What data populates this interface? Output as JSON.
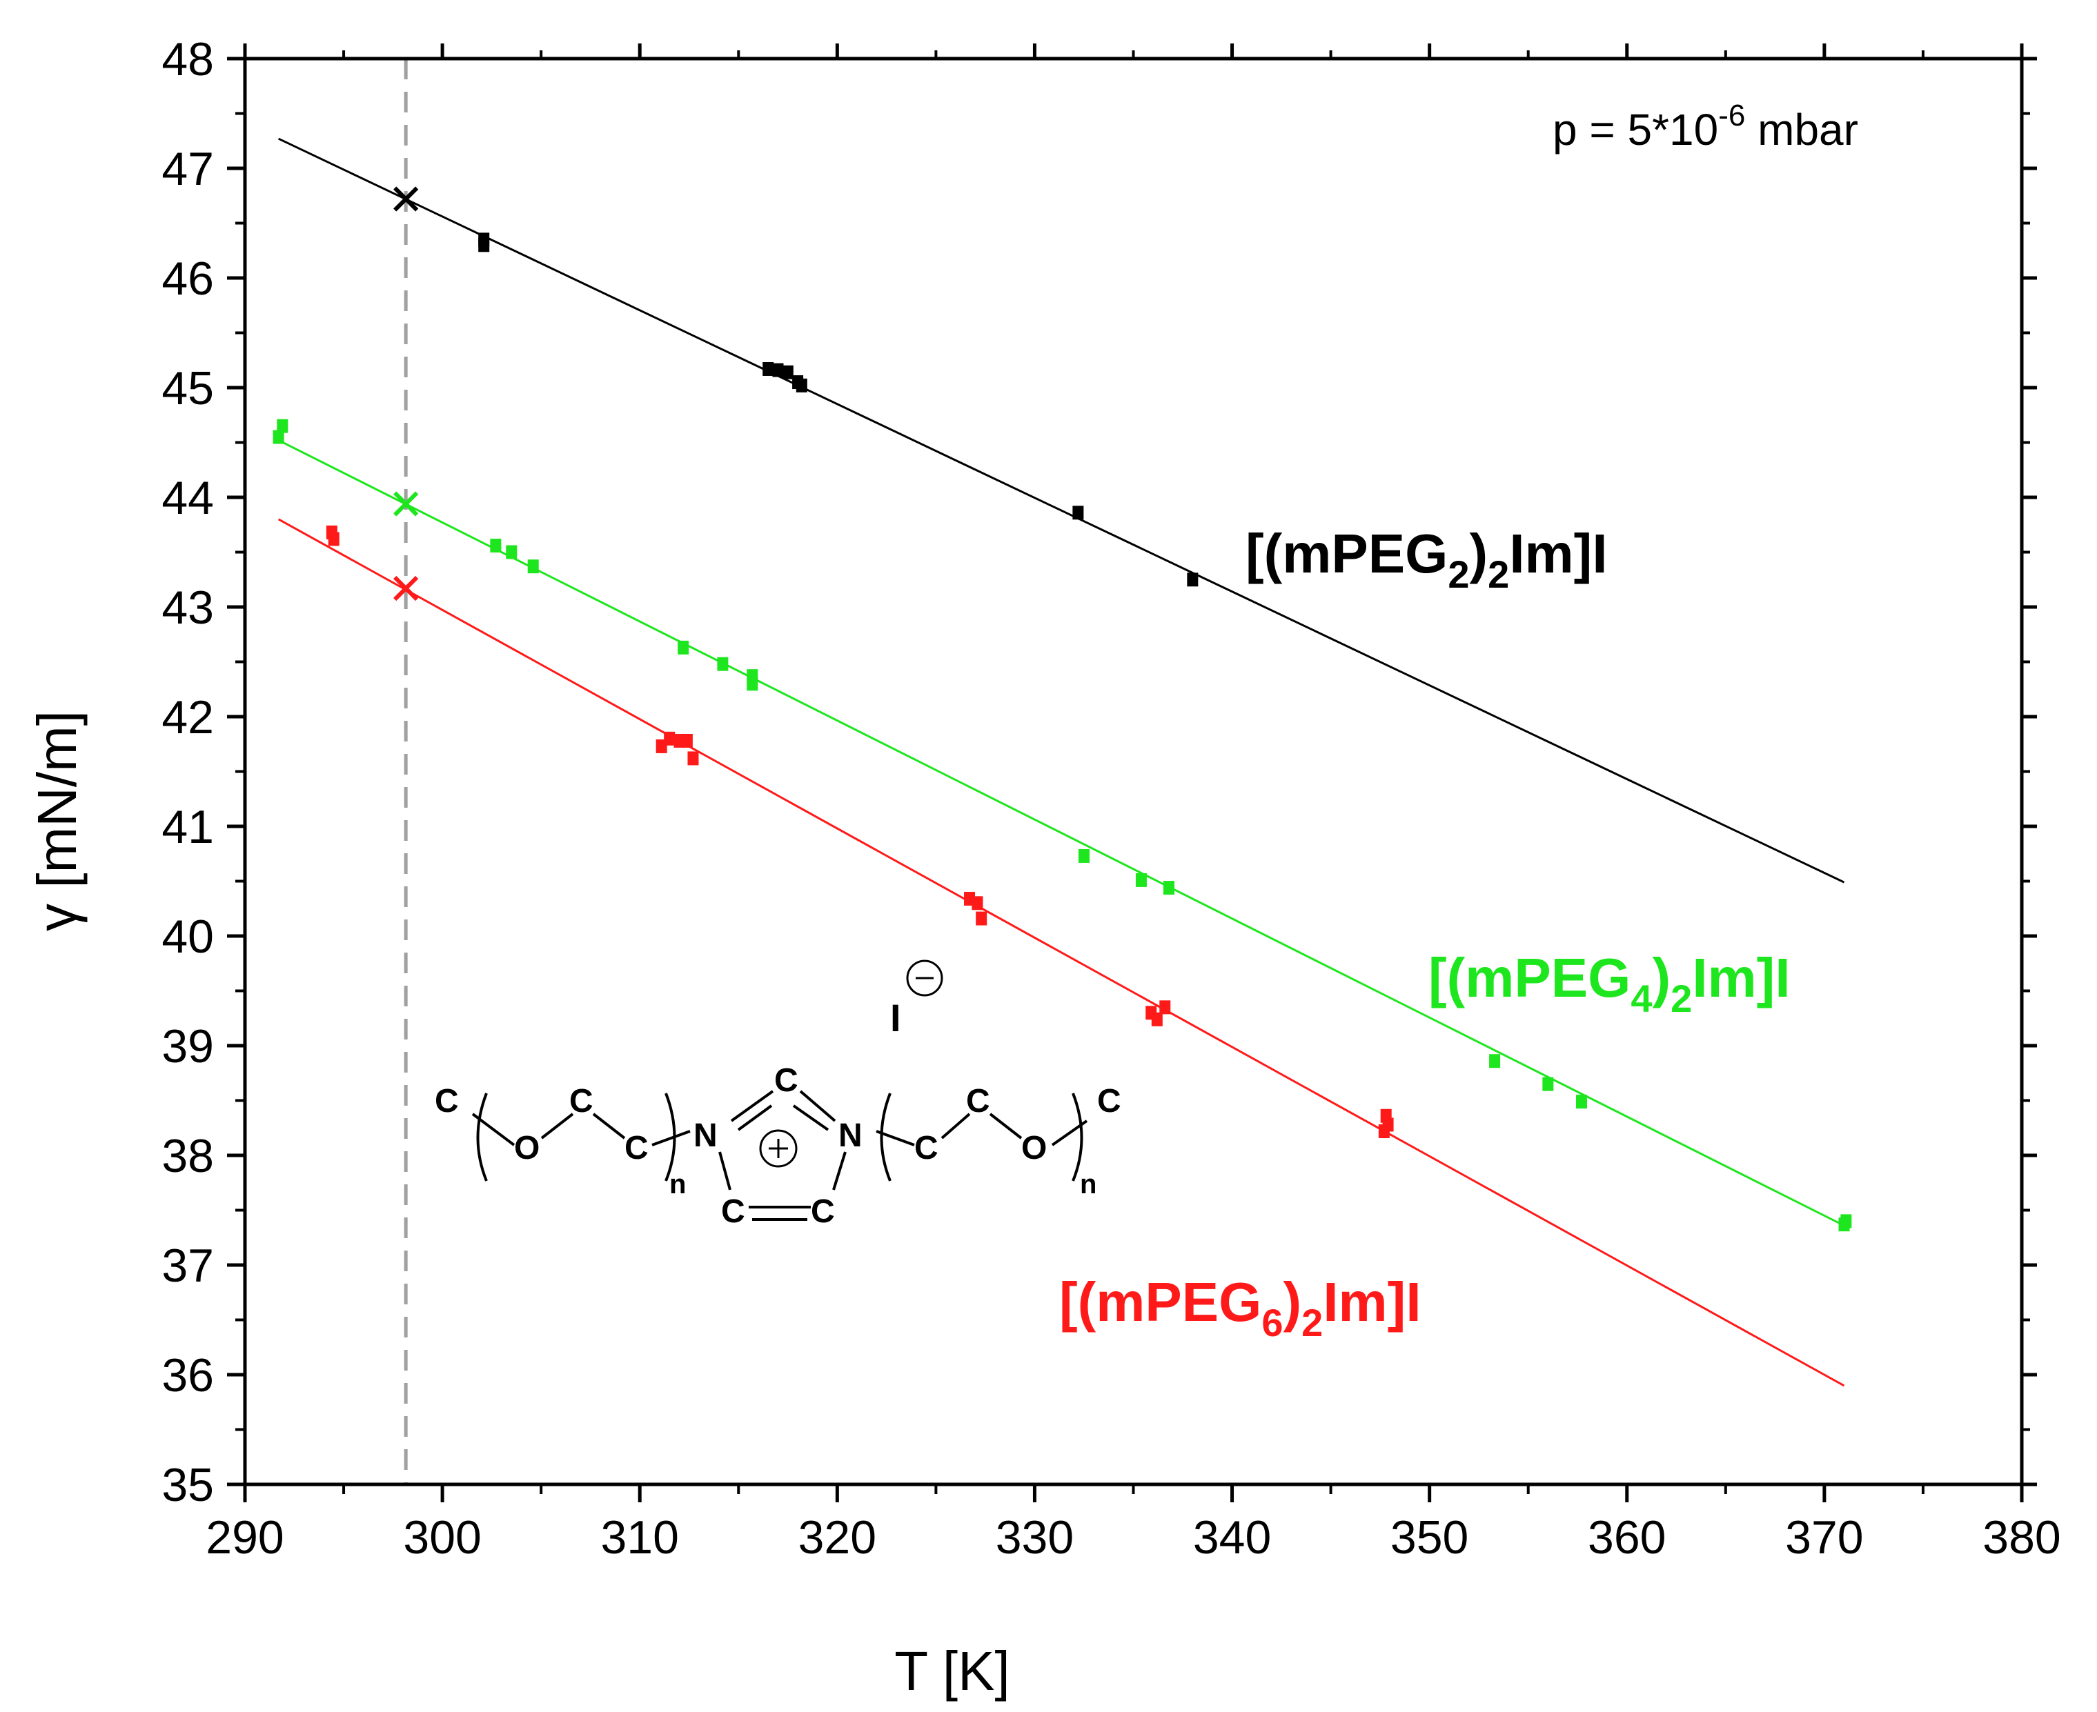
{
  "chart_data": {
    "type": "scatter",
    "title": "",
    "xlabel": "T [K]",
    "ylabel": "γ [mN/m]",
    "xlim": [
      290,
      380
    ],
    "ylim": [
      35,
      48
    ],
    "x_ticks": [
      "290",
      "300",
      "310",
      "320",
      "330",
      "340",
      "350",
      "360",
      "370",
      "380"
    ],
    "y_ticks": [
      "35",
      "36",
      "37",
      "38",
      "39",
      "40",
      "41",
      "42",
      "43",
      "44",
      "45",
      "46",
      "47",
      "48"
    ],
    "grid": false,
    "reference_line": {
      "x": 298.15,
      "style": "dashed",
      "color": "#a0a0a0"
    },
    "annotation": {
      "text": "p = 5*10",
      "sup": "-6",
      "tail": " mbar"
    },
    "series": [
      {
        "name": "[(mPEG2)2Im]I",
        "label_parts": {
          "a": "[(mPEG",
          "s1": "2",
          "b": ")",
          "s2": "2",
          "c": "Im]I"
        },
        "color": "#000000",
        "points": [
          [
            302.1,
            46.35
          ],
          [
            302.1,
            46.3
          ],
          [
            316.5,
            45.17
          ],
          [
            317.0,
            45.16
          ],
          [
            317.5,
            45.14
          ],
          [
            318.0,
            45.05
          ],
          [
            318.2,
            45.02
          ],
          [
            332.2,
            43.86
          ],
          [
            338.0,
            43.25
          ]
        ],
        "fit": {
          "x": [
            291.7,
            371.0
          ],
          "y": [
            47.27,
            40.49
          ]
        },
        "marker_298": [
          298.15,
          46.72
        ]
      },
      {
        "name": "[(mPEG4)2Im]I",
        "label_parts": {
          "a": "[(mPEG",
          "s1": "4",
          "b": ")",
          "s2": "2",
          "c": "Im]I"
        },
        "color": "#1ee61e",
        "points": [
          [
            291.7,
            44.55
          ],
          [
            291.9,
            44.65
          ],
          [
            302.7,
            43.56
          ],
          [
            303.5,
            43.5
          ],
          [
            304.6,
            43.37
          ],
          [
            312.2,
            42.63
          ],
          [
            314.2,
            42.48
          ],
          [
            315.7,
            42.37
          ],
          [
            315.7,
            42.3
          ],
          [
            332.5,
            40.73
          ],
          [
            335.4,
            40.51
          ],
          [
            336.8,
            40.44
          ],
          [
            353.3,
            38.86
          ],
          [
            356.0,
            38.65
          ],
          [
            357.7,
            38.49
          ],
          [
            371.0,
            37.37
          ],
          [
            371.1,
            37.4
          ]
        ],
        "fit": {
          "x": [
            291.7,
            371.0
          ],
          "y": [
            44.52,
            37.36
          ]
        },
        "marker_298": [
          298.15,
          43.94
        ]
      },
      {
        "name": "[(mPEG6)2Im]I",
        "label_parts": {
          "a": "[(mPEG",
          "s1": "6",
          "b": ")",
          "s2": "2",
          "c": "Im]I"
        },
        "color": "#ff1a1a",
        "points": [
          [
            294.4,
            43.68
          ],
          [
            294.5,
            43.62
          ],
          [
            311.1,
            41.73
          ],
          [
            311.5,
            41.8
          ],
          [
            312.0,
            41.78
          ],
          [
            312.4,
            41.78
          ],
          [
            312.7,
            41.62
          ],
          [
            326.7,
            40.34
          ],
          [
            327.1,
            40.3
          ],
          [
            327.3,
            40.16
          ],
          [
            335.9,
            39.3
          ],
          [
            336.2,
            39.24
          ],
          [
            336.6,
            39.35
          ],
          [
            347.8,
            38.36
          ],
          [
            347.9,
            38.28
          ],
          [
            347.7,
            38.22
          ]
        ],
        "fit": {
          "x": [
            291.7,
            371.0
          ],
          "y": [
            43.8,
            35.9
          ]
        },
        "marker_298": [
          298.15,
          43.17
        ]
      }
    ],
    "structure": {
      "anion": "I",
      "charge_anion": "⊖",
      "charge_cation": "⊕",
      "carbon": "C",
      "oxygen": "O",
      "nitrogen": "N",
      "repeat": "n"
    }
  }
}
